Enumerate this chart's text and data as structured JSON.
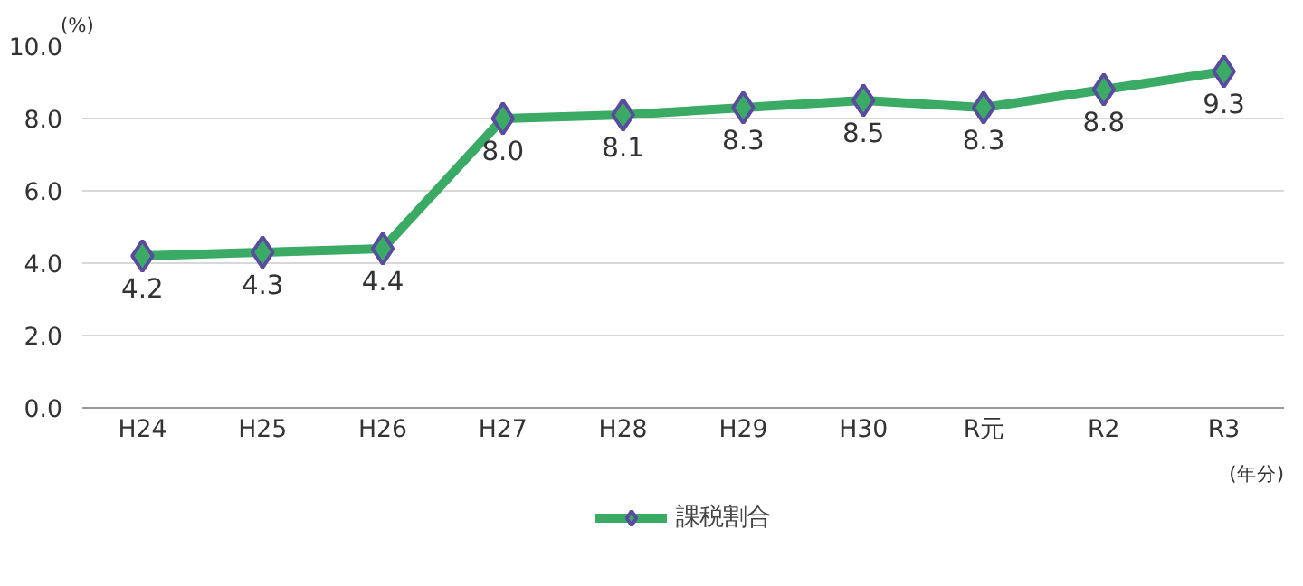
{
  "chart_data": {
    "type": "line",
    "categories": [
      "H24",
      "H25",
      "H26",
      "H27",
      "H28",
      "H29",
      "H30",
      "R元",
      "R2",
      "R3"
    ],
    "series": [
      {
        "name": "課税割合",
        "color": "#3aaa64",
        "values": [
          4.2,
          4.3,
          4.4,
          8.0,
          8.1,
          8.3,
          8.5,
          8.3,
          8.8,
          9.3
        ],
        "value_labels": [
          "4.2",
          "4.3",
          "4.4",
          "8.0",
          "8.1",
          "8.3",
          "8.5",
          "8.3",
          "8.8",
          "9.3"
        ]
      }
    ],
    "ylabel": "(%)",
    "xlabel": "(年分)",
    "ylim": [
      0,
      10
    ],
    "yticks": [
      {
        "value": 0,
        "label": "0.0"
      },
      {
        "value": 2,
        "label": "2.0"
      },
      {
        "value": 4,
        "label": "4.0"
      },
      {
        "value": 6,
        "label": "6.0"
      },
      {
        "value": 8,
        "label": "8.0"
      },
      {
        "value": 10,
        "label": "10.0"
      }
    ],
    "grid": "y",
    "legend": "bottom",
    "marker": "diamond",
    "line_style": "solid",
    "data_labels": true
  }
}
